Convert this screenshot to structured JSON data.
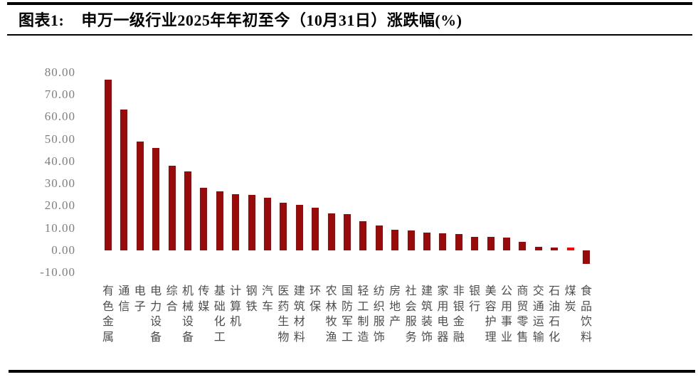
{
  "page": {
    "figure_label": "图表1:",
    "figure_title": "申万一级行业2025年年初至今（10月31日）涨跌幅(%)"
  },
  "chart_data": {
    "type": "bar",
    "title": "申万一级行业2025年年初至今（10月31日）涨跌幅(%)",
    "categories": [
      "有色金属",
      "通信",
      "电子",
      "电力设备",
      "综合",
      "机械设备",
      "传媒",
      "基础化工",
      "计算机",
      "钢铁",
      "汽车",
      "医药生物",
      "建筑材料",
      "环保",
      "农林牧渔",
      "国防军工",
      "轻工制造",
      "纺织服饰",
      "房地产",
      "社会服务",
      "建筑装饰",
      "家用电器",
      "非银金融",
      "银行",
      "美容护理",
      "公用事业",
      "商贸零售",
      "交通运输",
      "石油石化",
      "煤炭",
      "食品饮料"
    ],
    "values": [
      76.8,
      63.2,
      49.0,
      46.0,
      38.0,
      35.5,
      28.0,
      26.5,
      25.3,
      24.8,
      23.7,
      21.5,
      20.3,
      19.3,
      16.5,
      16.2,
      13.1,
      11.2,
      9.4,
      9.1,
      8.0,
      7.6,
      7.5,
      6.2,
      6.0,
      5.6,
      3.7,
      1.5,
      1.4,
      1.3,
      -6.1
    ],
    "highlight": {
      "category": "煤炭",
      "index": 29,
      "color": "#ff0000"
    },
    "bar_color": "#990b0b",
    "xlabel": "",
    "ylabel": "",
    "ylim": [
      -10,
      80
    ],
    "ytick_labels": [
      "80.00",
      "70.00",
      "60.00",
      "50.00",
      "40.00",
      "30.00",
      "20.00",
      "10.00",
      "0.00",
      "-10.00"
    ],
    "grid": false,
    "legend": false,
    "x_labels_orientation": "vertical"
  }
}
